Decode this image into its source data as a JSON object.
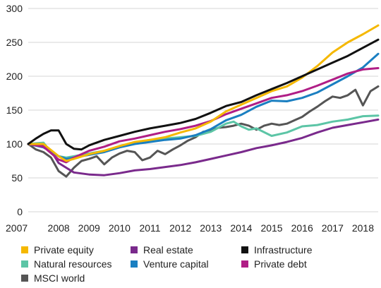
{
  "chart_data": {
    "type": "line",
    "title": "",
    "xlabel": "",
    "ylabel": "",
    "ylim": [
      0,
      300
    ],
    "xlim": [
      2007,
      2018.5
    ],
    "yticks": [
      0,
      50,
      100,
      150,
      200,
      250,
      300
    ],
    "xticks": [
      "2007",
      "2008",
      "2009",
      "2010",
      "2011",
      "2012",
      "2013",
      "2014",
      "2015",
      "2016",
      "2017",
      "2018"
    ],
    "grid": true,
    "legend_position": "bottom",
    "series": [
      {
        "name": "Private equity",
        "color": "#F5B800",
        "x": [
          2007,
          2007.5,
          2008,
          2008.25,
          2008.5,
          2009,
          2009.5,
          2010,
          2010.5,
          2011,
          2011.5,
          2012,
          2012.5,
          2013,
          2013.5,
          2014,
          2014.5,
          2015,
          2015.5,
          2016,
          2016.5,
          2017,
          2017.5,
          2018,
          2018.5
        ],
        "y": [
          100,
          100,
          82,
          75,
          78,
          85,
          90,
          97,
          103,
          106,
          110,
          117,
          123,
          133,
          148,
          158,
          168,
          178,
          185,
          198,
          215,
          235,
          250,
          262,
          275
        ]
      },
      {
        "name": "Real estate",
        "color": "#7A2A8C",
        "x": [
          2007,
          2007.5,
          2007.75,
          2008,
          2008.25,
          2008.5,
          2009,
          2009.5,
          2010,
          2010.5,
          2011,
          2011.5,
          2012,
          2012.5,
          2013,
          2013.5,
          2014,
          2014.5,
          2015,
          2015.5,
          2016,
          2016.5,
          2017,
          2017.5,
          2018,
          2018.5
        ],
        "y": [
          100,
          97,
          90,
          72,
          65,
          58,
          55,
          54,
          57,
          61,
          63,
          66,
          69,
          73,
          78,
          83,
          88,
          94,
          98,
          103,
          109,
          117,
          124,
          128,
          132,
          136
        ]
      },
      {
        "name": "Infrastructure",
        "color": "#111111",
        "x": [
          2007,
          2007.25,
          2007.5,
          2007.75,
          2008,
          2008.25,
          2008.5,
          2008.75,
          2009,
          2009.5,
          2010,
          2010.5,
          2011,
          2011.5,
          2012,
          2012.5,
          2013,
          2013.5,
          2014,
          2014.5,
          2015,
          2015.5,
          2016,
          2016.5,
          2017,
          2017.5,
          2018,
          2018.5
        ],
        "y": [
          100,
          108,
          115,
          120,
          120,
          100,
          93,
          92,
          98,
          106,
          112,
          118,
          123,
          127,
          131,
          137,
          146,
          156,
          162,
          172,
          181,
          190,
          200,
          210,
          220,
          230,
          242,
          254
        ]
      },
      {
        "name": "Natural resources",
        "color": "#5CC5A6",
        "x": [
          2007,
          2007.25,
          2007.5,
          2007.75,
          2008,
          2008.25,
          2008.5,
          2009,
          2009.5,
          2010,
          2010.5,
          2011,
          2011.5,
          2012,
          2012.5,
          2013,
          2013.5,
          2013.75,
          2014,
          2014.25,
          2014.5,
          2015,
          2015.5,
          2016,
          2016.5,
          2017,
          2017.5,
          2018,
          2018.5
        ],
        "y": [
          100,
          101,
          102,
          88,
          82,
          80,
          82,
          86,
          90,
          96,
          102,
          106,
          108,
          110,
          112,
          118,
          130,
          133,
          126,
          121,
          123,
          112,
          117,
          126,
          128,
          133,
          136,
          141,
          142
        ]
      },
      {
        "name": "Venture capital",
        "color": "#1A7FC1",
        "x": [
          2007,
          2007.5,
          2008,
          2008.25,
          2008.5,
          2009,
          2009.5,
          2010,
          2010.5,
          2011,
          2011.5,
          2012,
          2012.5,
          2013,
          2013.5,
          2014,
          2014.5,
          2015,
          2015.5,
          2016,
          2016.5,
          2017,
          2017.5,
          2018,
          2018.5
        ],
        "y": [
          100,
          95,
          82,
          78,
          80,
          84,
          88,
          95,
          100,
          103,
          106,
          108,
          113,
          122,
          135,
          143,
          155,
          164,
          163,
          168,
          176,
          188,
          200,
          213,
          233
        ]
      },
      {
        "name": "Private debt",
        "color": "#B01E86",
        "x": [
          2007,
          2007.5,
          2008,
          2008.25,
          2008.5,
          2009,
          2009.5,
          2010,
          2010.5,
          2011,
          2011.5,
          2012,
          2012.5,
          2013,
          2013.5,
          2014,
          2014.5,
          2015,
          2015.5,
          2016,
          2016.5,
          2017,
          2017.5,
          2018,
          2018.5
        ],
        "y": [
          100,
          96,
          77,
          73,
          80,
          90,
          96,
          104,
          108,
          113,
          118,
          122,
          127,
          134,
          144,
          152,
          160,
          168,
          172,
          178,
          186,
          195,
          204,
          210,
          212
        ]
      },
      {
        "name": "MSCI world",
        "color": "#555555",
        "x": [
          2007,
          2007.25,
          2007.5,
          2007.75,
          2008,
          2008.25,
          2008.5,
          2008.75,
          2009,
          2009.25,
          2009.5,
          2009.75,
          2010,
          2010.25,
          2010.5,
          2010.75,
          2011,
          2011.25,
          2011.5,
          2011.75,
          2012,
          2012.25,
          2012.5,
          2012.75,
          2013,
          2013.25,
          2013.5,
          2013.75,
          2014,
          2014.25,
          2014.5,
          2014.75,
          2015,
          2015.25,
          2015.5,
          2015.75,
          2016,
          2016.25,
          2016.5,
          2016.75,
          2017,
          2017.25,
          2017.5,
          2017.75,
          2018,
          2018.25,
          2018.5
        ],
        "y": [
          100,
          92,
          88,
          80,
          60,
          52,
          65,
          75,
          78,
          82,
          70,
          80,
          86,
          90,
          88,
          76,
          80,
          90,
          85,
          92,
          98,
          105,
          110,
          118,
          120,
          124,
          125,
          127,
          130,
          127,
          121,
          127,
          130,
          128,
          130,
          135,
          140,
          148,
          155,
          163,
          170,
          168,
          172,
          180,
          157,
          178,
          185
        ]
      }
    ]
  }
}
